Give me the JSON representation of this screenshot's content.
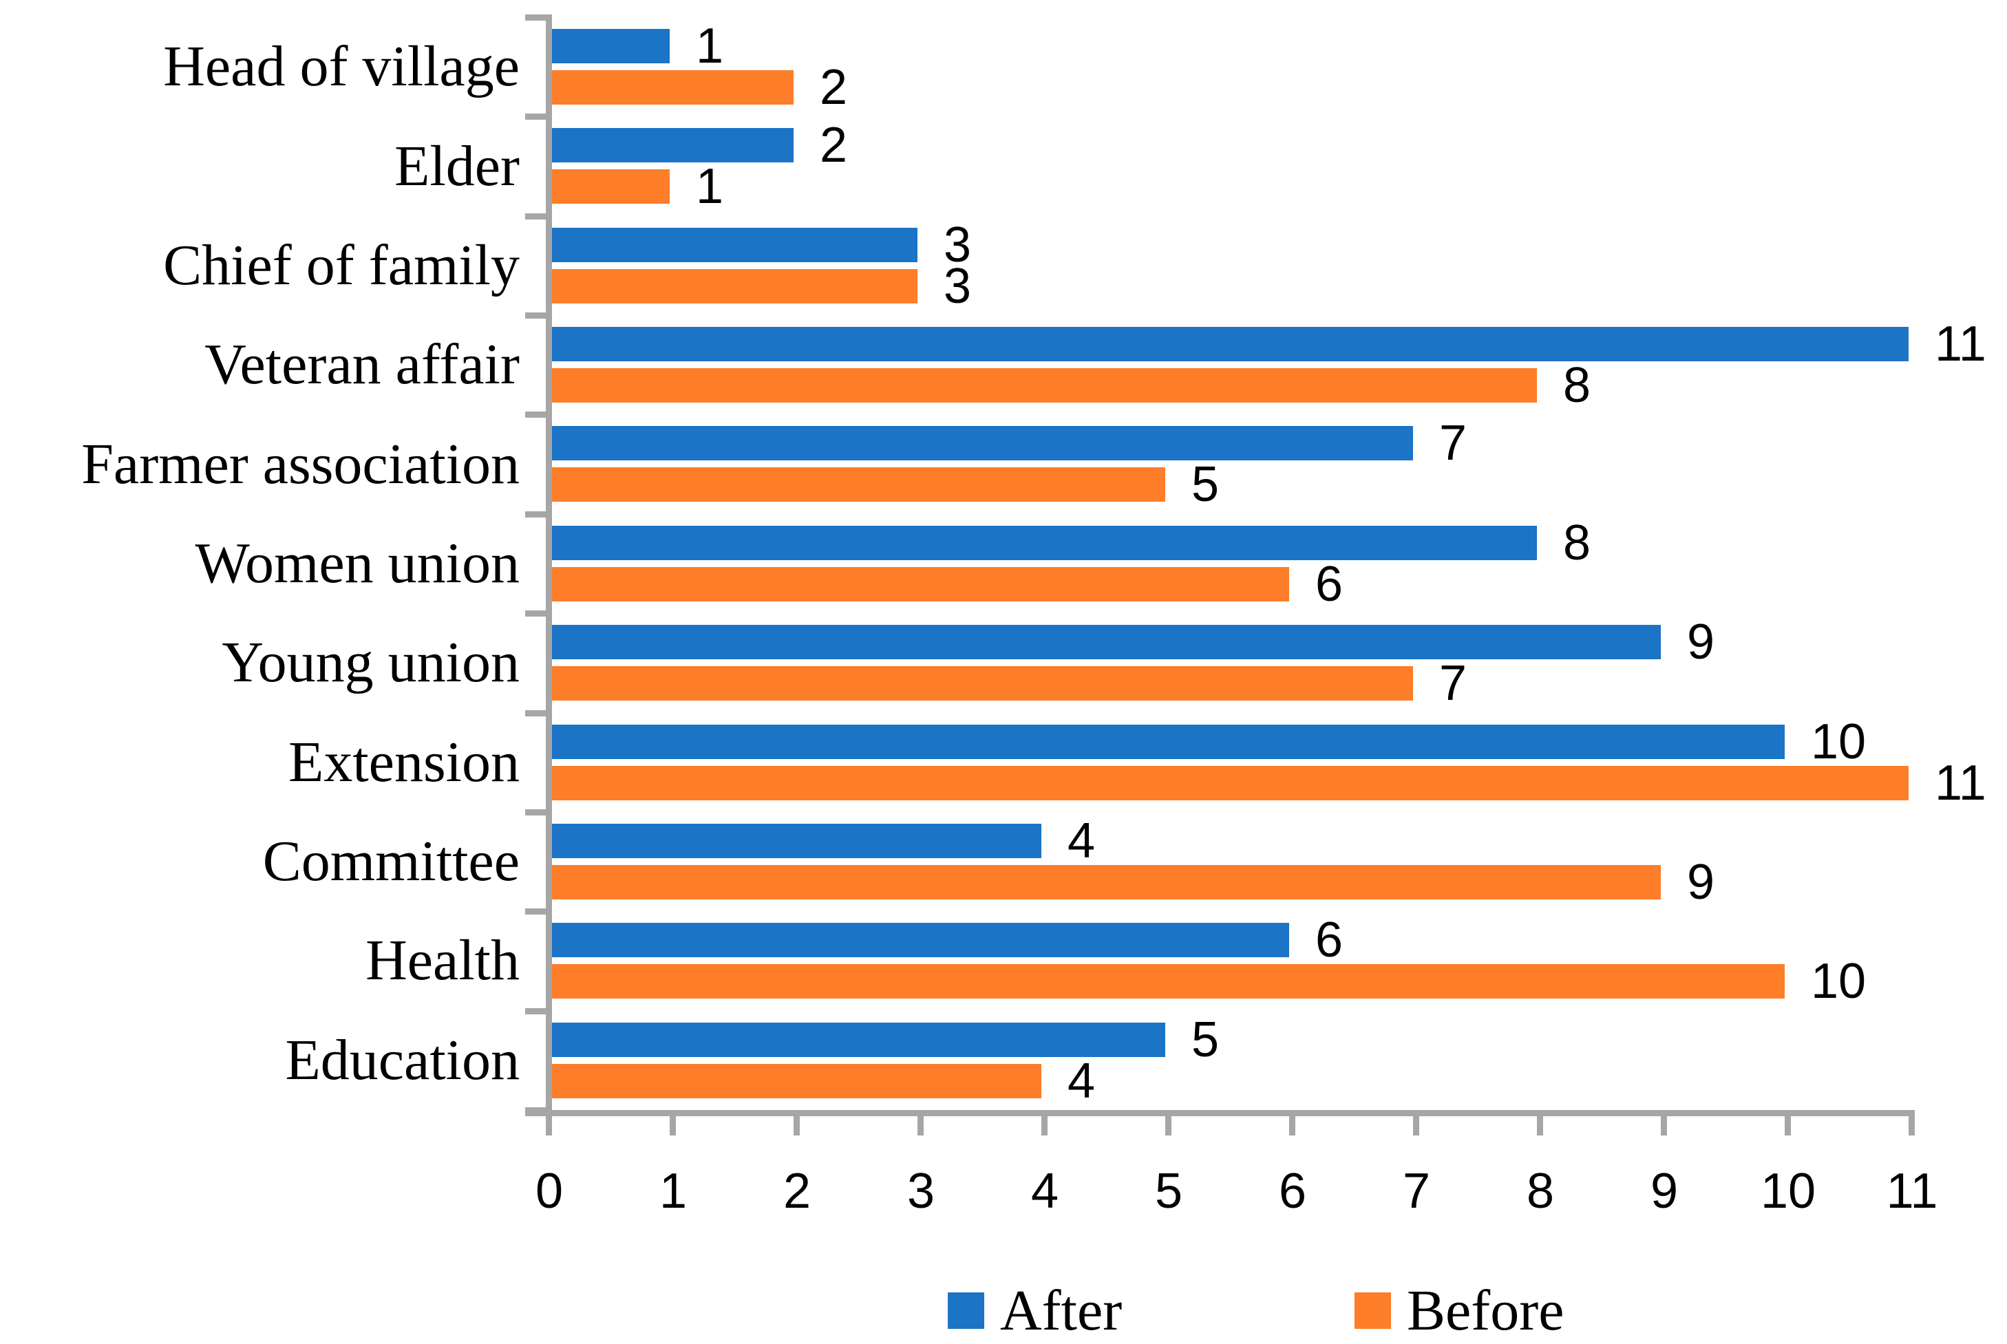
{
  "chart_data": {
    "type": "bar",
    "orientation": "horizontal",
    "title": "",
    "xlabel": "",
    "ylabel": "",
    "categories": [
      "Head of village",
      "Elder",
      "Chief of family",
      "Veteran affair",
      "Farmer association",
      "Women union",
      "Young union",
      "Extension",
      "Committee",
      "Health",
      "Education"
    ],
    "series": [
      {
        "name": "After",
        "color": "#1B74C5",
        "values": [
          1,
          2,
          3,
          11,
          7,
          8,
          9,
          10,
          4,
          6,
          5
        ]
      },
      {
        "name": "Before",
        "color": "#FD7D28",
        "values": [
          2,
          1,
          3,
          8,
          5,
          6,
          7,
          11,
          9,
          10,
          4
        ]
      }
    ],
    "data_labels_visible": true,
    "xlim": [
      0,
      11
    ],
    "x_ticks": [
      0,
      1,
      2,
      3,
      4,
      5,
      6,
      7,
      8,
      9,
      10,
      11
    ],
    "grid": false,
    "legend_position": "bottom",
    "axis_color": "#A6A6A6",
    "text_color": "#000000",
    "background_color": "#FFFFFF"
  }
}
